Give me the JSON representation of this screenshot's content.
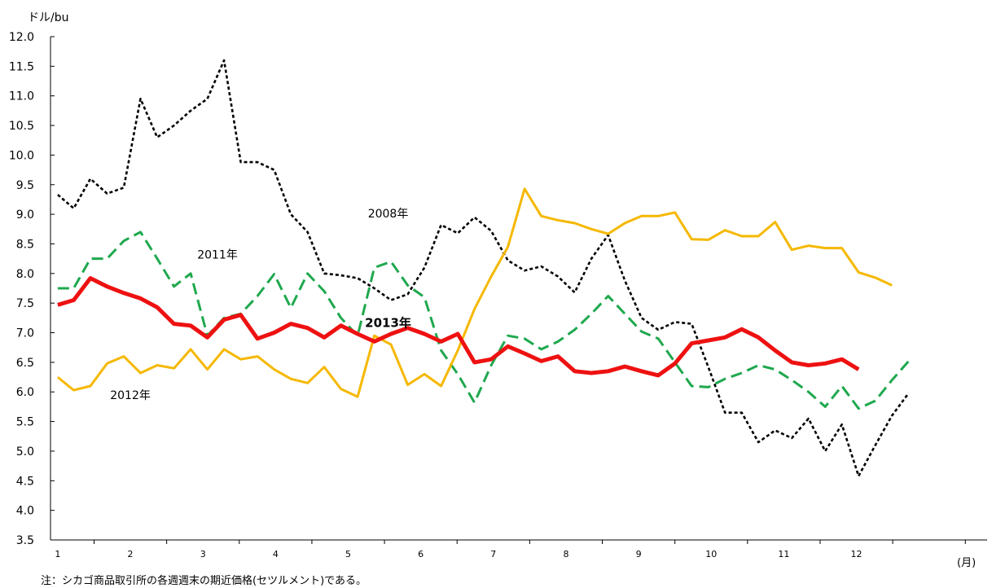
{
  "chart_data": {
    "type": "line",
    "ylabel": "ドル/bu",
    "xlabel": "(月)",
    "ylim": [
      3.5,
      12.0
    ],
    "yticks": [
      "3.5",
      "4.0",
      "4.5",
      "5.0",
      "5.5",
      "6.0",
      "6.5",
      "7.0",
      "7.5",
      "8.0",
      "8.5",
      "9.0",
      "9.5",
      "10.0",
      "10.5",
      "11.0",
      "11.5",
      "12.0"
    ],
    "xlim": [
      0.9,
      13.8
    ],
    "xticks": [
      "1",
      "2",
      "3",
      "4",
      "5",
      "6",
      "7",
      "8",
      "9",
      "10",
      "11",
      "12"
    ],
    "grid": false,
    "note": "注：シカゴ商品取引所の各週週末の期近価格(セツルメント)である。",
    "series": [
      {
        "name": "2008年",
        "color": "#000000",
        "style": "dotted",
        "label_pos": [
          5.55,
          8.95
        ],
        "x": [
          1.0,
          1.22,
          1.45,
          1.68,
          1.91,
          2.14,
          2.37,
          2.6,
          2.83,
          3.06,
          3.29,
          3.52,
          3.75,
          3.98,
          4.21,
          4.44,
          4.67,
          4.9,
          5.13,
          5.36,
          5.59,
          5.82,
          6.05,
          6.28,
          6.51,
          6.74,
          6.97,
          7.2,
          7.43,
          7.66,
          7.89,
          8.12,
          8.35,
          8.58,
          8.81,
          9.04,
          9.27,
          9.5,
          9.73,
          9.96,
          10.19,
          10.42,
          10.65,
          10.88,
          11.11,
          11.34,
          11.57,
          11.8,
          12.03,
          12.26,
          12.49,
          12.72
        ],
        "values": [
          9.33,
          9.1,
          9.6,
          9.35,
          9.45,
          10.95,
          10.3,
          10.5,
          10.75,
          10.95,
          11.6,
          9.88,
          9.88,
          9.75,
          9.0,
          8.7,
          8.0,
          7.97,
          7.92,
          7.75,
          7.55,
          7.65,
          8.1,
          8.82,
          8.68,
          8.95,
          8.72,
          8.22,
          8.05,
          8.12,
          7.95,
          7.68,
          8.25,
          8.65,
          7.88,
          7.25,
          7.05,
          7.18,
          7.15,
          6.42,
          5.65,
          5.65,
          5.15,
          5.35,
          5.22,
          5.55,
          5.0,
          5.45,
          4.58,
          5.1,
          5.6,
          5.98
        ]
      },
      {
        "name": "2011年",
        "color": "#1fa84e",
        "style": "dashed",
        "label_pos": [
          3.2,
          8.25
        ],
        "x": [
          1.0,
          1.22,
          1.45,
          1.68,
          1.91,
          2.14,
          2.37,
          2.6,
          2.83,
          3.06,
          3.29,
          3.52,
          3.75,
          3.98,
          4.21,
          4.44,
          4.67,
          4.9,
          5.13,
          5.36,
          5.59,
          5.82,
          6.05,
          6.28,
          6.51,
          6.74,
          6.97,
          7.2,
          7.43,
          7.66,
          7.89,
          8.12,
          8.35,
          8.58,
          8.81,
          9.04,
          9.27,
          9.5,
          9.73,
          9.96,
          10.19,
          10.42,
          10.65,
          10.88,
          11.11,
          11.34,
          11.57,
          11.8,
          12.03,
          12.26,
          12.49,
          12.72
        ],
        "values": [
          7.75,
          7.75,
          8.25,
          8.25,
          8.55,
          8.7,
          8.25,
          7.78,
          8.0,
          6.95,
          7.25,
          7.32,
          7.62,
          7.99,
          7.42,
          8.0,
          7.7,
          7.25,
          6.95,
          8.1,
          8.2,
          7.8,
          7.6,
          6.7,
          6.3,
          5.82,
          6.45,
          6.95,
          6.9,
          6.72,
          6.85,
          7.05,
          7.32,
          7.62,
          7.32,
          7.02,
          6.9,
          6.5,
          6.1,
          6.08,
          6.22,
          6.32,
          6.45,
          6.38,
          6.2,
          6.0,
          5.75,
          6.1,
          5.72,
          5.85,
          6.2,
          6.52
        ]
      },
      {
        "name": "2012年",
        "color": "#f5b800",
        "style": "solid",
        "label_pos": [
          2.0,
          5.88
        ],
        "x": [
          1.0,
          1.22,
          1.45,
          1.68,
          1.91,
          2.14,
          2.37,
          2.6,
          2.83,
          3.06,
          3.29,
          3.52,
          3.75,
          3.98,
          4.21,
          4.44,
          4.67,
          4.9,
          5.13,
          5.36,
          5.59,
          5.82,
          6.05,
          6.28,
          6.51,
          6.74,
          6.97,
          7.2,
          7.43,
          7.66,
          7.89,
          8.12,
          8.35,
          8.58,
          8.81,
          9.04,
          9.27,
          9.5,
          9.73,
          9.96,
          10.19,
          10.42,
          10.65,
          10.88,
          11.11,
          11.34,
          11.57,
          11.8,
          12.03,
          12.26,
          12.49
        ],
        "values": [
          6.25,
          6.03,
          6.1,
          6.48,
          6.6,
          6.32,
          6.45,
          6.4,
          6.72,
          6.38,
          6.72,
          6.55,
          6.6,
          6.38,
          6.22,
          6.15,
          6.42,
          6.05,
          5.92,
          6.95,
          6.8,
          6.12,
          6.3,
          6.1,
          6.7,
          7.4,
          7.95,
          8.45,
          9.43,
          8.97,
          8.9,
          8.85,
          8.75,
          8.67,
          8.85,
          8.97,
          8.97,
          9.03,
          8.58,
          8.57,
          8.73,
          8.63,
          8.63,
          8.87,
          8.4,
          8.47,
          8.43,
          8.43,
          8.02,
          7.93,
          7.8
        ]
      },
      {
        "name": "2013年",
        "color": "#ee1111",
        "style": "solid",
        "label_pos": [
          5.55,
          7.1
        ],
        "x": [
          1.0,
          1.22,
          1.45,
          1.68,
          1.91,
          2.14,
          2.37,
          2.6,
          2.83,
          3.06,
          3.29,
          3.52,
          3.75,
          3.98,
          4.21,
          4.44,
          4.67,
          4.9,
          5.13,
          5.36,
          5.59,
          5.82,
          6.05,
          6.28,
          6.51,
          6.74,
          6.97,
          7.2,
          7.43,
          7.66,
          7.89,
          8.12,
          8.35,
          8.58,
          8.81,
          9.04,
          9.27,
          9.5,
          9.73,
          9.96,
          10.19,
          10.42,
          10.65,
          10.88,
          11.11,
          11.34,
          11.57,
          11.8,
          12.03
        ],
        "values": [
          7.47,
          7.55,
          7.92,
          7.78,
          7.67,
          7.58,
          7.43,
          7.15,
          7.12,
          6.92,
          7.22,
          7.3,
          6.9,
          7.0,
          7.15,
          7.08,
          6.92,
          7.12,
          6.98,
          6.85,
          6.98,
          7.08,
          6.98,
          6.85,
          6.98,
          6.5,
          6.55,
          6.77,
          6.65,
          6.52,
          6.6,
          6.35,
          6.32,
          6.35,
          6.43,
          6.35,
          6.28,
          6.48,
          6.82,
          6.87,
          6.92,
          7.06,
          6.92,
          6.7,
          6.5,
          6.45,
          6.48,
          6.55,
          6.38
        ]
      }
    ]
  }
}
